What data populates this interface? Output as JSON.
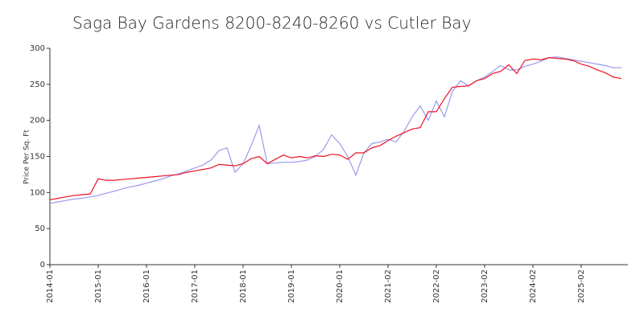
{
  "chart_data": {
    "type": "line",
    "title": "Saga Bay Gardens 8200-8240-8260 vs Cutler Bay",
    "y_label": "Price Per Sq. Ft",
    "categories": [
      "2014-01",
      null,
      null,
      null,
      null,
      null,
      "2015-01",
      null,
      null,
      null,
      null,
      null,
      "2016-01",
      null,
      null,
      null,
      null,
      null,
      "2017-01",
      null,
      null,
      null,
      null,
      null,
      "2018-01",
      null,
      null,
      null,
      null,
      null,
      "2019-01",
      null,
      null,
      null,
      null,
      null,
      "2020-01",
      null,
      null,
      null,
      null,
      null,
      "2021-02",
      null,
      null,
      null,
      null,
      null,
      "2022-02",
      null,
      null,
      null,
      null,
      null,
      "2023-02",
      null,
      null,
      null,
      null,
      null,
      "2024-02",
      null,
      null,
      null,
      null,
      null,
      "2025-02",
      null,
      null,
      null,
      null,
      null
    ],
    "series": [
      {
        "color": "#9999ee",
        "values": [
          85,
          87,
          89,
          91,
          92,
          94,
          96,
          99,
          102,
          105,
          108,
          110,
          113,
          116,
          119,
          123,
          126,
          130,
          134,
          138,
          145,
          158,
          162,
          128,
          140,
          165,
          193,
          140,
          141,
          142,
          142,
          143,
          145,
          150,
          160,
          180,
          168,
          150,
          124,
          155,
          168,
          170,
          174,
          170,
          185,
          205,
          220,
          200,
          227,
          205,
          240,
          255,
          248,
          255,
          260,
          268,
          276,
          270,
          270,
          275,
          278,
          282,
          287,
          288,
          286,
          284,
          282,
          280,
          278,
          276,
          273,
          273
        ]
      },
      {
        "color": "#ee1122",
        "values": [
          90,
          92,
          94,
          96,
          97,
          98,
          119,
          117,
          117,
          118,
          119,
          120,
          121,
          122,
          123,
          124,
          125,
          128,
          130,
          132,
          134,
          139,
          138,
          137,
          140,
          147,
          150,
          140,
          146,
          152,
          148,
          150,
          148,
          151,
          150,
          153,
          152,
          146,
          155,
          155,
          162,
          165,
          172,
          178,
          183,
          188,
          190,
          212,
          212,
          230,
          246,
          247,
          248,
          255,
          258,
          265,
          268,
          277,
          265,
          283,
          285,
          284,
          287,
          286,
          285,
          283,
          278,
          275,
          270,
          266,
          260,
          258
        ]
      }
    ],
    "ylim": [
      0,
      300
    ],
    "yticks": [
      0,
      50,
      100,
      150,
      200,
      250,
      300
    ],
    "grid": false
  }
}
